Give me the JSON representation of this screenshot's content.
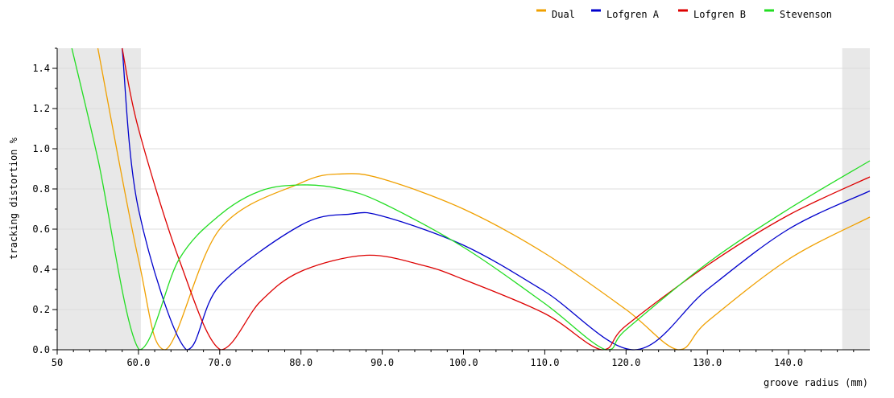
{
  "chart_data": {
    "type": "line",
    "xlabel": "groove radius (mm)",
    "ylabel": "tracking distortion %",
    "xlim": [
      50,
      150
    ],
    "ylim": [
      0,
      1.5
    ],
    "x_ticks": [
      50,
      60,
      70,
      80,
      90,
      100,
      110,
      120,
      130,
      140
    ],
    "x_tick_labels": [
      "50",
      "60.0",
      "70.0",
      "80.0",
      "90.0",
      "100.0",
      "110.0",
      "120.0",
      "130.0",
      "140.0"
    ],
    "y_ticks": [
      0,
      0.2,
      0.4,
      0.6,
      0.8,
      1.0,
      1.2,
      1.4
    ],
    "y_tick_labels": [
      "0.0",
      "0.2",
      "0.4",
      "0.6",
      "0.8",
      "1.0",
      "1.2",
      "1.4"
    ],
    "grid": true,
    "legend_position": "top-right",
    "shaded_regions": [
      [
        50,
        60.3
      ],
      [
        146.6,
        150
      ]
    ],
    "series": [
      {
        "name": "Dual",
        "color": "#f0a000",
        "x": [
          55,
          60,
          63.3,
          70,
          80,
          85,
          90,
          100,
          110,
          120,
          126.4,
          130,
          140,
          150
        ],
        "y": [
          1.5,
          0.45,
          0.0,
          0.6,
          0.83,
          0.875,
          0.85,
          0.7,
          0.48,
          0.2,
          0.0,
          0.14,
          0.45,
          0.66
        ]
      },
      {
        "name": "Lofgren A",
        "color": "#0000cc",
        "x": [
          58,
          60,
          65.9,
          70,
          80,
          86,
          90,
          100,
          110,
          121,
          130,
          140,
          150
        ],
        "y": [
          1.5,
          0.7,
          0.0,
          0.32,
          0.62,
          0.675,
          0.665,
          0.52,
          0.29,
          0.0,
          0.3,
          0.6,
          0.79
        ]
      },
      {
        "name": "Lofgren B",
        "color": "#dd0000",
        "x": [
          58,
          60,
          65,
          70.1,
          75,
          80,
          88,
          95,
          100,
          110,
          117,
          120,
          130,
          140,
          150
        ],
        "y": [
          1.5,
          1.1,
          0.45,
          0.0,
          0.24,
          0.39,
          0.47,
          0.42,
          0.35,
          0.18,
          0.0,
          0.12,
          0.42,
          0.67,
          0.86
        ]
      },
      {
        "name": "Stevenson",
        "color": "#22dd22",
        "x": [
          51.8,
          55,
          60.1,
          65,
          70,
          75,
          80,
          85,
          90,
          100,
          110,
          117.5,
          120,
          130,
          140,
          150
        ],
        "y": [
          1.5,
          0.95,
          0.0,
          0.45,
          0.67,
          0.79,
          0.82,
          0.8,
          0.73,
          0.51,
          0.23,
          0.0,
          0.1,
          0.43,
          0.7,
          0.94
        ]
      }
    ]
  }
}
